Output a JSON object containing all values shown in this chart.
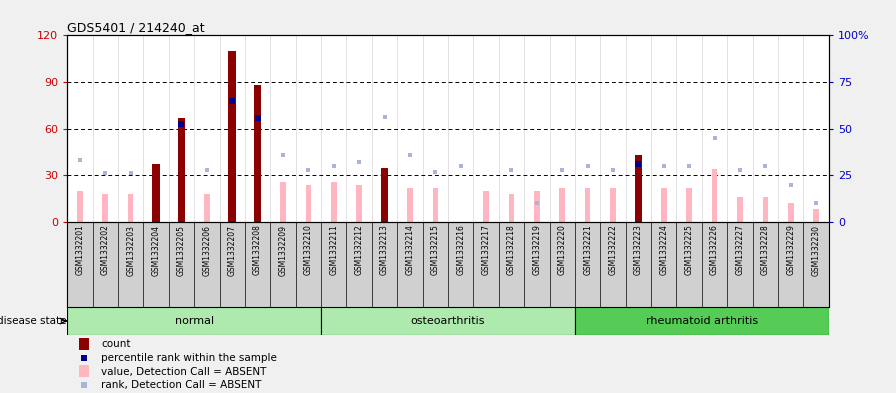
{
  "title": "GDS5401 / 214240_at",
  "samples": [
    "GSM1332201",
    "GSM1332202",
    "GSM1332203",
    "GSM1332204",
    "GSM1332205",
    "GSM1332206",
    "GSM1332207",
    "GSM1332208",
    "GSM1332209",
    "GSM1332210",
    "GSM1332211",
    "GSM1332212",
    "GSM1332213",
    "GSM1332214",
    "GSM1332215",
    "GSM1332216",
    "GSM1332217",
    "GSM1332218",
    "GSM1332219",
    "GSM1332220",
    "GSM1332221",
    "GSM1332222",
    "GSM1332223",
    "GSM1332224",
    "GSM1332225",
    "GSM1332226",
    "GSM1332227",
    "GSM1332228",
    "GSM1332229",
    "GSM1332230"
  ],
  "count_values": [
    0,
    0,
    0,
    37,
    67,
    0,
    110,
    88,
    0,
    0,
    0,
    0,
    35,
    0,
    0,
    0,
    0,
    0,
    0,
    0,
    0,
    0,
    43,
    0,
    0,
    0,
    0,
    0,
    0,
    0
  ],
  "percentile_rank": [
    null,
    null,
    null,
    null,
    63,
    null,
    78,
    67,
    null,
    null,
    null,
    null,
    null,
    null,
    null,
    null,
    null,
    null,
    null,
    null,
    null,
    null,
    37,
    null,
    null,
    null,
    null,
    null,
    null,
    null
  ],
  "absent_value": [
    20,
    18,
    18,
    null,
    null,
    18,
    null,
    null,
    26,
    24,
    26,
    24,
    null,
    22,
    22,
    null,
    20,
    18,
    20,
    22,
    22,
    22,
    null,
    22,
    22,
    34,
    16,
    16,
    12,
    8
  ],
  "absent_rank": [
    33,
    26,
    26,
    null,
    null,
    28,
    null,
    null,
    36,
    28,
    30,
    32,
    56,
    36,
    27,
    30,
    null,
    28,
    10,
    28,
    30,
    28,
    null,
    30,
    30,
    45,
    28,
    30,
    20,
    10
  ],
  "disease_groups": [
    {
      "label": "normal",
      "start": 0,
      "end": 9,
      "color": "#aeeaae"
    },
    {
      "label": "osteoarthritis",
      "start": 10,
      "end": 19,
      "color": "#aeeaae"
    },
    {
      "label": "rheumatoid arthritis",
      "start": 20,
      "end": 29,
      "color": "#55cc55"
    }
  ],
  "ylim_left": [
    0,
    120
  ],
  "ylim_right": [
    0,
    100
  ],
  "yticks_left": [
    0,
    30,
    60,
    90,
    120
  ],
  "yticks_right": [
    0,
    25,
    50,
    75,
    100
  ],
  "ytick_labels_right": [
    "0",
    "25",
    "50",
    "75",
    "100%"
  ],
  "bar_color_count": "#8B0000",
  "bar_color_absent_value": "#FFB6C1",
  "marker_color_percentile": "#00008B",
  "marker_color_absent_rank": "#aab4d8",
  "left_axis_color": "#cc0000",
  "right_axis_color": "#0000cc",
  "sample_bg_color": "#d0d0d0",
  "plot_bg_color": "#ffffff",
  "fig_bg_color": "#f0f0f0",
  "legend_labels": [
    "count",
    "percentile rank within the sample",
    "value, Detection Call = ABSENT",
    "rank, Detection Call = ABSENT"
  ],
  "legend_colors": [
    "#8B0000",
    "#00008B",
    "#FFB6C1",
    "#aab4d8"
  ],
  "legend_is_bar": [
    true,
    false,
    true,
    false
  ]
}
